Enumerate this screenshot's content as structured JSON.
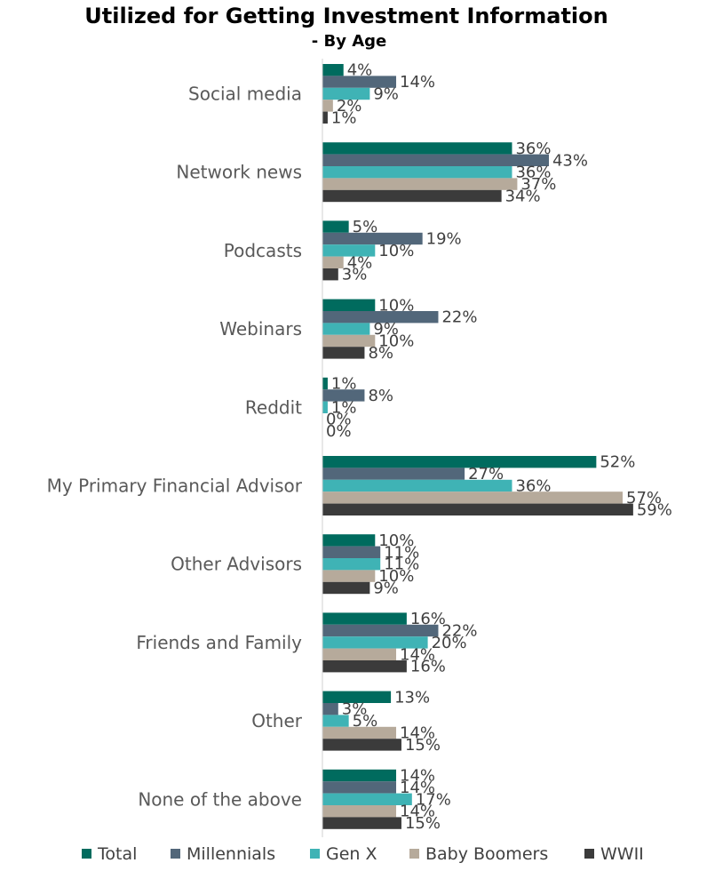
{
  "chart_data": {
    "type": "bar",
    "orientation": "horizontal",
    "title": "Utilized for Getting Investment Information",
    "subtitle": "- By Age",
    "categories": [
      "Social media",
      "Network news",
      "Podcasts",
      "Webinars",
      "Reddit",
      "My Primary Financial Advisor",
      "Other Advisors",
      "Friends and Family",
      "Other",
      "None of the above"
    ],
    "series": [
      {
        "name": "Total",
        "color": "#006b5e",
        "values": [
          4,
          36,
          5,
          10,
          1,
          52,
          10,
          16,
          13,
          14
        ]
      },
      {
        "name": "Millennials",
        "color": "#52677a",
        "values": [
          14,
          43,
          19,
          22,
          8,
          27,
          11,
          22,
          3,
          14
        ]
      },
      {
        "name": "Gen X",
        "color": "#3fb3b5",
        "values": [
          9,
          36,
          10,
          9,
          1,
          36,
          11,
          20,
          5,
          17
        ]
      },
      {
        "name": "Baby Boomers",
        "color": "#b6aa9b",
        "values": [
          2,
          37,
          4,
          10,
          0,
          57,
          10,
          14,
          14,
          14
        ]
      },
      {
        "name": "WWII",
        "color": "#3b3b3b",
        "values": [
          1,
          34,
          3,
          8,
          0,
          59,
          9,
          16,
          15,
          15
        ]
      }
    ],
    "value_suffix": "%",
    "xlim": [
      0,
      60
    ],
    "grid": false,
    "legend_position": "bottom"
  }
}
